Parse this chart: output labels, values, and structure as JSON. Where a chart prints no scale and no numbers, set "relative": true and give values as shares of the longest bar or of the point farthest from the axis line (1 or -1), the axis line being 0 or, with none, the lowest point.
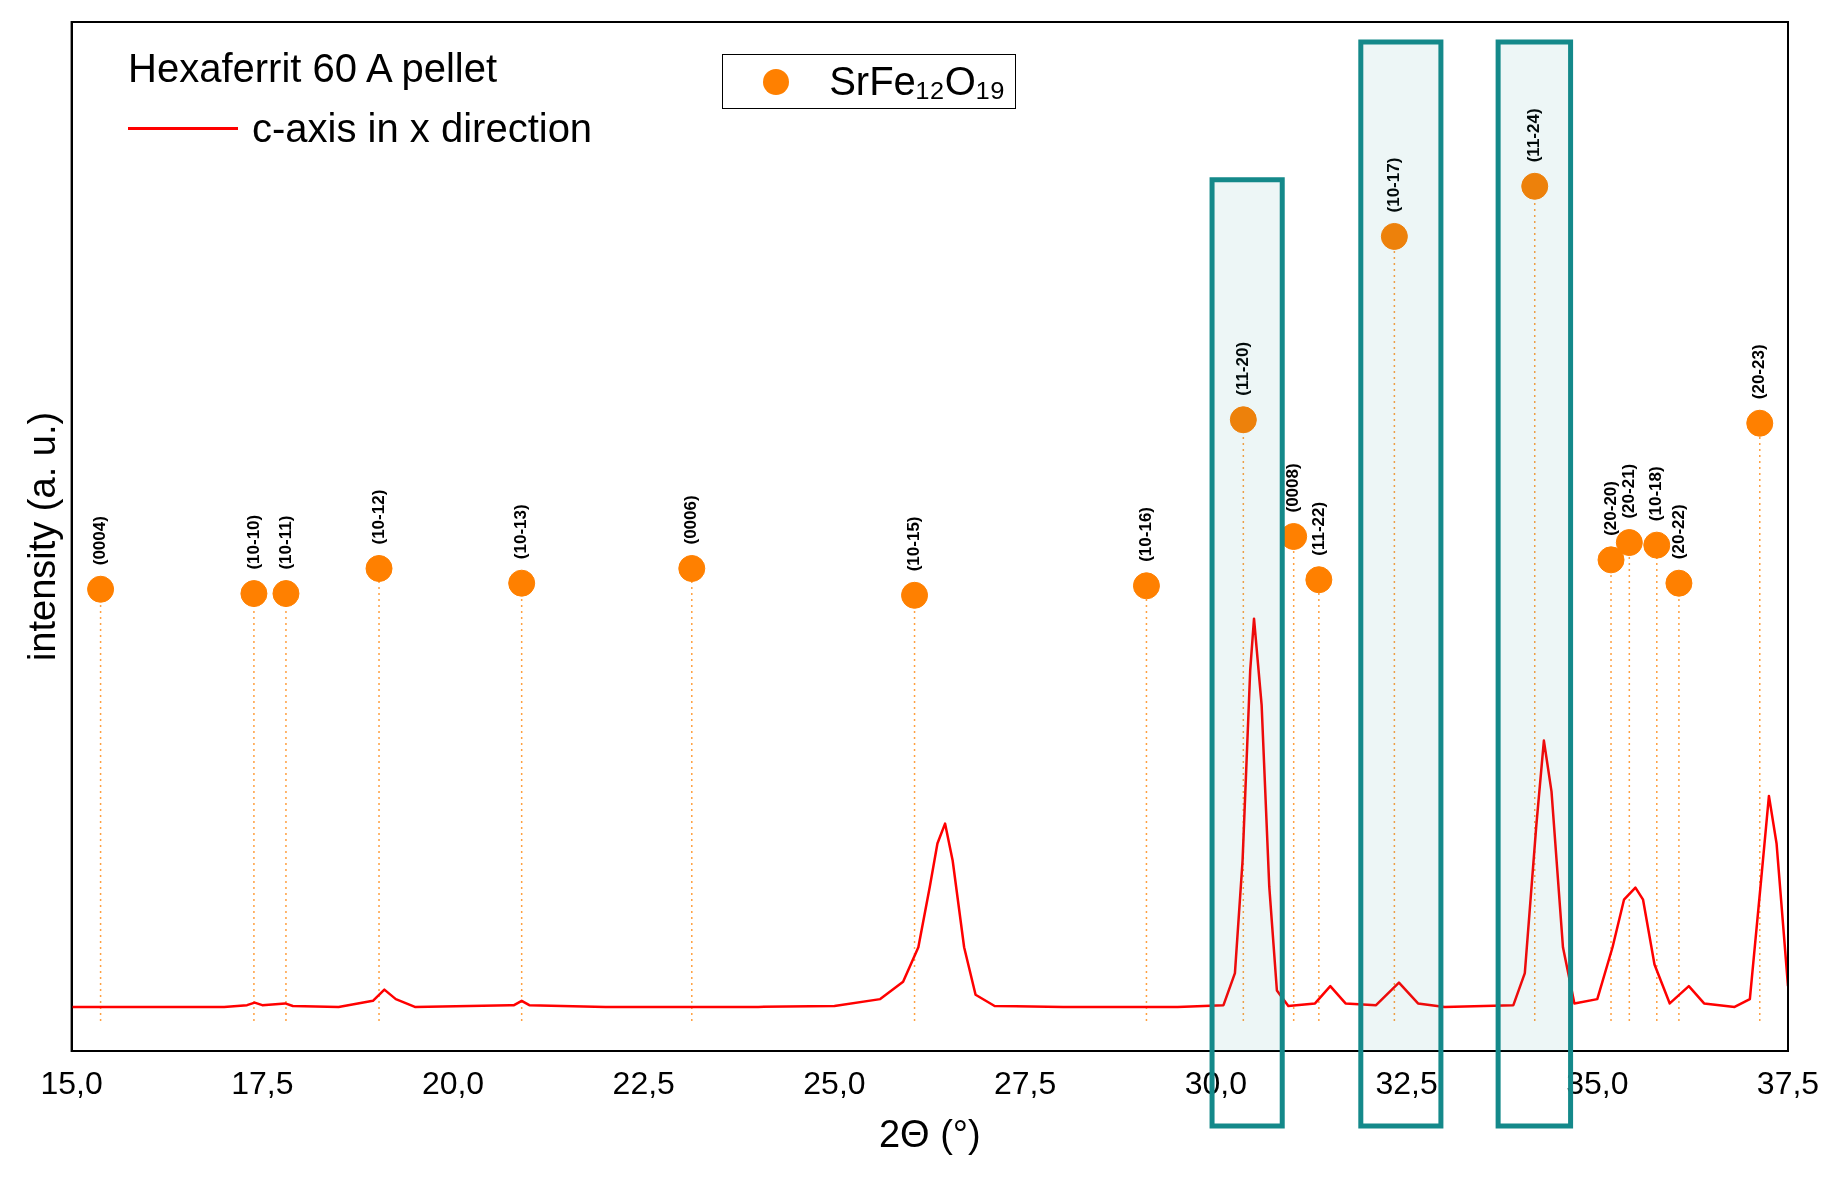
{
  "chart_data": {
    "type": "line",
    "relative": true,
    "xlabel": "2Θ (°)",
    "ylabel": "intensity (a. u.)",
    "legend_title": "Hexaferrit 60 A pellet",
    "legend": "top left",
    "grid": false,
    "xlim": [
      15,
      37.5
    ],
    "xticks": [
      {
        "value": 15,
        "label": "15,0"
      },
      {
        "value": 17.5,
        "label": "17,5"
      },
      {
        "value": 20,
        "label": "20,0"
      },
      {
        "value": 22.5,
        "label": "22,5"
      },
      {
        "value": 25,
        "label": "25,0"
      },
      {
        "value": 27.5,
        "label": "27,5"
      },
      {
        "value": 30,
        "label": "30,0"
      },
      {
        "value": 32.5,
        "label": "32,5"
      },
      {
        "value": 35,
        "label": "35,0"
      },
      {
        "value": 37.5,
        "label": "37,5"
      }
    ],
    "series": [
      {
        "name": "c-axis in x direction",
        "color": "#ff0000",
        "marker": "none",
        "x": [
          15,
          16,
          17,
          17.3,
          17.4,
          17.5,
          17.8,
          17.9,
          18.5,
          18.95,
          19.1,
          19.25,
          19.5,
          20.8,
          20.9,
          21.0,
          22,
          24,
          25,
          25.6,
          25.9,
          26.1,
          26.25,
          26.35,
          26.45,
          26.55,
          26.7,
          26.85,
          27.1,
          28,
          29.5,
          30.1,
          30.25,
          30.35,
          30.45,
          30.5,
          30.6,
          30.7,
          30.8,
          30.95,
          31.3,
          31.5,
          31.7,
          32.1,
          32.4,
          32.65,
          33,
          33.9,
          34.05,
          34.2,
          34.3,
          34.4,
          34.55,
          34.7,
          35.0,
          35.2,
          35.35,
          35.5,
          35.6,
          35.75,
          35.95,
          36.2,
          36.4,
          36.8,
          37.0,
          37.15,
          37.25,
          37.35,
          37.5
        ],
        "values": [
          0.051,
          0.051,
          0.051,
          0.053,
          0.056,
          0.053,
          0.055,
          0.052,
          0.051,
          0.058,
          0.071,
          0.06,
          0.051,
          0.053,
          0.058,
          0.053,
          0.051,
          0.051,
          0.052,
          0.06,
          0.08,
          0.12,
          0.19,
          0.24,
          0.263,
          0.22,
          0.12,
          0.065,
          0.052,
          0.051,
          0.051,
          0.053,
          0.09,
          0.22,
          0.44,
          0.5,
          0.4,
          0.19,
          0.07,
          0.052,
          0.055,
          0.075,
          0.055,
          0.053,
          0.079,
          0.055,
          0.051,
          0.053,
          0.09,
          0.26,
          0.359,
          0.3,
          0.12,
          0.055,
          0.06,
          0.12,
          0.175,
          0.189,
          0.175,
          0.1,
          0.055,
          0.075,
          0.055,
          0.051,
          0.06,
          0.2,
          0.295,
          0.24,
          0.075
        ]
      },
      {
        "name": "SrFe₁₂O₁₉",
        "type": "scatter",
        "color": "#ff8000",
        "marker": "circle",
        "x": [
          15.38,
          17.39,
          17.81,
          19.03,
          20.9,
          23.13,
          26.05,
          29.09,
          30.36,
          31.02,
          31.35,
          32.34,
          34.18,
          35.18,
          35.42,
          35.78,
          36.07,
          37.13
        ],
        "values": [
          0.534,
          0.529,
          0.529,
          0.558,
          0.541,
          0.558,
          0.527,
          0.538,
          0.73,
          0.595,
          0.545,
          0.942,
          1.0,
          0.568,
          0.588,
          0.585,
          0.541,
          0.726
        ]
      }
    ],
    "ref_lines": [
      {
        "axis": "x",
        "value": 15.38,
        "color": "#ffa040",
        "line_style": "dotted"
      },
      {
        "axis": "x",
        "value": 17.39,
        "color": "#ffa040",
        "line_style": "dotted"
      },
      {
        "axis": "x",
        "value": 17.81,
        "color": "#ffa040",
        "line_style": "dotted"
      },
      {
        "axis": "x",
        "value": 19.03,
        "color": "#ffa040",
        "line_style": "dotted"
      },
      {
        "axis": "x",
        "value": 20.9,
        "color": "#ffa040",
        "line_style": "dotted"
      },
      {
        "axis": "x",
        "value": 23.13,
        "color": "#ffa040",
        "line_style": "dotted"
      },
      {
        "axis": "x",
        "value": 26.05,
        "color": "#ffa040",
        "line_style": "dotted"
      },
      {
        "axis": "x",
        "value": 29.09,
        "color": "#ffa040",
        "line_style": "dotted"
      },
      {
        "axis": "x",
        "value": 30.36,
        "color": "#ffa040",
        "line_style": "dotted"
      },
      {
        "axis": "x",
        "value": 31.02,
        "color": "#ffa040",
        "line_style": "dotted"
      },
      {
        "axis": "x",
        "value": 31.35,
        "color": "#ffa040",
        "line_style": "dotted"
      },
      {
        "axis": "x",
        "value": 32.34,
        "color": "#ffa040",
        "line_style": "dotted"
      },
      {
        "axis": "x",
        "value": 34.18,
        "color": "#ffa040",
        "line_style": "dotted"
      },
      {
        "axis": "x",
        "value": 35.18,
        "color": "#ffa040",
        "line_style": "dotted"
      },
      {
        "axis": "x",
        "value": 35.42,
        "color": "#ffa040",
        "line_style": "dotted"
      },
      {
        "axis": "x",
        "value": 35.78,
        "color": "#ffa040",
        "line_style": "dotted"
      },
      {
        "axis": "x",
        "value": 36.07,
        "color": "#ffa040",
        "line_style": "dotted"
      },
      {
        "axis": "x",
        "value": 37.13,
        "color": "#ffa040",
        "line_style": "dotted"
      }
    ],
    "bands": [
      {
        "axis": "x",
        "from": 29.95,
        "to": 30.87,
        "color": "#14898a"
      },
      {
        "axis": "x",
        "from": 31.9,
        "to": 32.95,
        "color": "#14898a"
      },
      {
        "axis": "x",
        "from": 33.7,
        "to": 34.65,
        "color": "#14898a"
      }
    ],
    "annotations": [
      {
        "text": "(0004)",
        "x": 15.38,
        "y": 0.534
      },
      {
        "text": "(10-10)",
        "x": 17.39,
        "y": 0.529
      },
      {
        "text": "(10-11)",
        "x": 17.81,
        "y": 0.529
      },
      {
        "text": "(10-12)",
        "x": 19.03,
        "y": 0.558
      },
      {
        "text": "(10-13)",
        "x": 20.9,
        "y": 0.541
      },
      {
        "text": "(0006)",
        "x": 23.13,
        "y": 0.558
      },
      {
        "text": "(10-15)",
        "x": 26.05,
        "y": 0.527
      },
      {
        "text": "(10-16)",
        "x": 29.09,
        "y": 0.538
      },
      {
        "text": "(11-20)",
        "x": 30.36,
        "y": 0.73
      },
      {
        "text": "(0008)",
        "x": 31.02,
        "y": 0.595
      },
      {
        "text": "(11-22)",
        "x": 31.35,
        "y": 0.545
      },
      {
        "text": "(10-17)",
        "x": 32.34,
        "y": 0.942
      },
      {
        "text": "(11-24)",
        "x": 34.18,
        "y": 1.0
      },
      {
        "text": "(20-20)",
        "x": 35.18,
        "y": 0.568
      },
      {
        "text": "(20-21)",
        "x": 35.42,
        "y": 0.588
      },
      {
        "text": "(10-18)",
        "x": 35.78,
        "y": 0.585
      },
      {
        "text": "(20-22)",
        "x": 36.07,
        "y": 0.541
      },
      {
        "text": "(20-23)",
        "x": 37.13,
        "y": 0.726
      }
    ]
  }
}
